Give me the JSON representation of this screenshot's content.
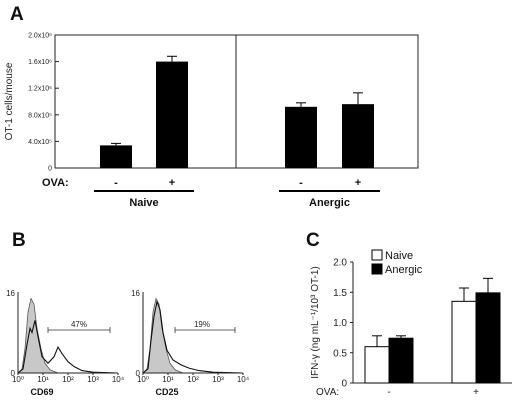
{
  "panels": {
    "a_label": "A",
    "b_label": "B",
    "c_label": "C"
  },
  "colors": {
    "bar_black": "#000000",
    "histogram_fill": "#c8c8c8"
  },
  "chart_data": [
    {
      "panel": "A",
      "type": "bar",
      "ylabel": "OT-1 cells/mouse",
      "ylim": [
        0,
        2000000
      ],
      "yticks": [
        {
          "value": 0,
          "label": "0"
        },
        {
          "value": 400000,
          "label": "4.0x10⁵"
        },
        {
          "value": 800000,
          "label": "8.0x10⁵"
        },
        {
          "value": 1200000,
          "label": "1.2x10⁶"
        },
        {
          "value": 1600000,
          "label": "1.6x10⁶"
        },
        {
          "value": 2000000,
          "label": "2.0x10⁶"
        }
      ],
      "row_label": "OVA:",
      "groups": [
        {
          "name": "Naive",
          "bars": [
            {
              "ova": "-",
              "value": 340000,
              "error": 30000
            },
            {
              "ova": "+",
              "value": 1600000,
              "error": 80000
            }
          ]
        },
        {
          "name": "Anergic",
          "bars": [
            {
              "ova": "-",
              "value": 920000,
              "error": 60000
            },
            {
              "ova": "+",
              "value": 960000,
              "error": 170000
            }
          ]
        }
      ],
      "grid": false
    },
    {
      "panel": "B",
      "type": "histogram",
      "xticks": [
        "10⁰",
        "10¹",
        "10²",
        "10³",
        "10⁴"
      ],
      "ytick_top": "16",
      "ytick_bottom": "0",
      "plots": [
        {
          "marker": "CD69",
          "percent": "47%"
        },
        {
          "marker": "CD25",
          "percent": "19%"
        }
      ]
    },
    {
      "panel": "C",
      "type": "bar",
      "ylabel": "IFN-γ (ng mL⁻¹/10³ OT-1)",
      "ylim": [
        0,
        2.0
      ],
      "yticks": [
        {
          "value": 0,
          "label": "0"
        },
        {
          "value": 0.5,
          "label": "0.5"
        },
        {
          "value": 1.0,
          "label": "1.0"
        },
        {
          "value": 1.5,
          "label": "1.5"
        },
        {
          "value": 2.0,
          "label": "2.0"
        }
      ],
      "row_label": "OVA:",
      "categories": [
        "-",
        "+"
      ],
      "series": [
        {
          "name": "Naive",
          "values": [
            0.6,
            1.35
          ],
          "errors": [
            0.18,
            0.22
          ],
          "color": "#ffffff"
        },
        {
          "name": "Anergic",
          "values": [
            0.74,
            1.49
          ],
          "errors": [
            0.04,
            0.24
          ],
          "color": "#000000"
        }
      ],
      "legend": "top-left"
    }
  ]
}
